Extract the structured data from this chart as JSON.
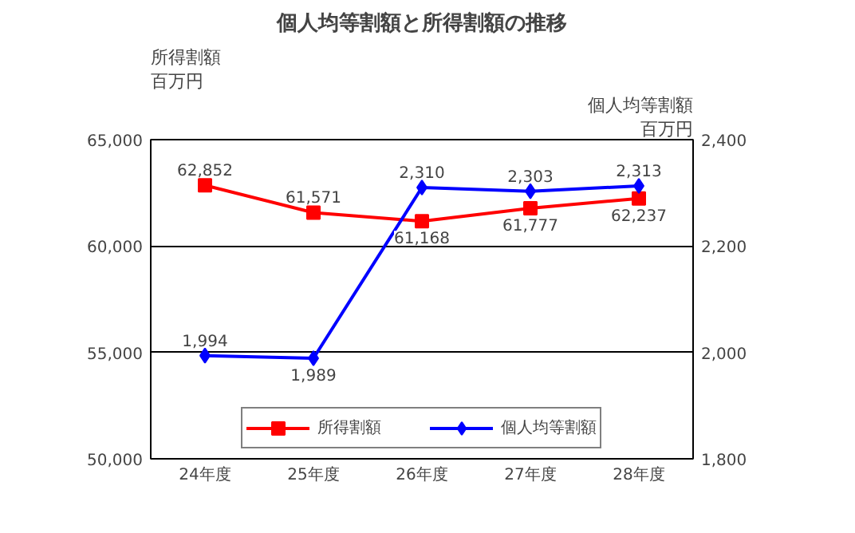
{
  "chart_data": {
    "type": "line",
    "title": "個人均等割額と所得割額の推移",
    "ylabel": "所得割額",
    "y2label": "個人均等割額",
    "annotations": [
      "百万円",
      "百万円"
    ],
    "categories": [
      "24年度",
      "25年度",
      "26年度",
      "27年度",
      "28年度"
    ],
    "series": [
      {
        "name": "所得割額",
        "color": "#ff0000",
        "marker": "square",
        "values": [
          62852,
          61571,
          61168,
          61777,
          62237
        ],
        "value_labels": [
          "62,852",
          "61,571",
          "61,168",
          "61,777",
          "62,237"
        ]
      },
      {
        "name": "個人均等割額",
        "color": "#0000ff",
        "marker": "diamond",
        "axis": "y2",
        "values": [
          1994,
          1989,
          2310,
          2303,
          2313
        ],
        "value_labels": [
          "1,994",
          "1,989",
          "2,310",
          "2,303",
          "2,313"
        ]
      }
    ],
    "ylim": [
      50000,
      65000
    ],
    "yticks": [
      {
        "value": 50000,
        "label": "50,000"
      },
      {
        "value": 55000,
        "label": "55,000"
      },
      {
        "value": 60000,
        "label": "60,000"
      },
      {
        "value": 65000,
        "label": "65,000"
      }
    ],
    "y2lim": [
      1800,
      2400
    ],
    "y2ticks": [
      {
        "value": 1800,
        "label": "1,800"
      },
      {
        "value": 2000,
        "label": "2,000"
      },
      {
        "value": 2200,
        "label": "2,200"
      },
      {
        "value": 2400,
        "label": "2,400"
      }
    ],
    "grid": "y",
    "legend": "bottom",
    "data_labels": true,
    "line_style": "solid"
  }
}
